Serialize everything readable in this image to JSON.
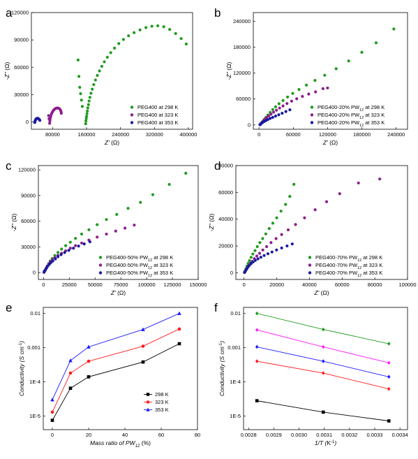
{
  "chart_data": [
    {
      "panel": "a",
      "type": "scatter",
      "xlabel": "Z' (Ω)",
      "ylabel": "-Z'' (Ω)",
      "xlim": [
        30000,
        410000
      ],
      "ylim": [
        -8000,
        120000
      ],
      "xticks": [
        80000,
        160000,
        240000,
        320000,
        400000
      ],
      "yticks": [
        0,
        30000,
        60000,
        90000,
        120000
      ],
      "legend_position": "bottom-right",
      "series": [
        {
          "name": "PEG400 at 298 K",
          "color": "#1f9b1f",
          "marker": "circle",
          "x": [
            158000,
            158500,
            159200,
            160000,
            161000,
            162000,
            163000,
            164500,
            166000,
            168000,
            170500,
            173500,
            177000,
            181000,
            185500,
            190500,
            196000,
            202000,
            209000,
            217000,
            226000,
            236000,
            247000,
            259000,
            272000,
            286000,
            300000,
            314000,
            328000,
            342000,
            356000,
            370000,
            383000,
            395000,
            150000,
            148000,
            146000,
            144000,
            142000,
            140000
          ],
          "y": [
            -2000,
            1000,
            3500,
            6000,
            9000,
            12000,
            15500,
            19000,
            23000,
            27000,
            31500,
            36000,
            41000,
            46000,
            51000,
            56000,
            61000,
            66000,
            71000,
            76000,
            81000,
            86000,
            90500,
            94500,
            98000,
            101000,
            103500,
            105000,
            105500,
            104500,
            101500,
            97000,
            91500,
            85500,
            17000,
            24000,
            31000,
            38000,
            50000,
            68000
          ]
        },
        {
          "name": "PEG400 at 323 K",
          "color": "#8b1f8b",
          "marker": "circle",
          "x": [
            73000,
            73500,
            74000,
            75000,
            76000,
            77500,
            79000,
            81000,
            83000,
            85500,
            88000,
            90500,
            93000,
            95500,
            97500,
            99000,
            100000,
            100500,
            71500,
            70500
          ],
          "y": [
            -1500,
            1000,
            3000,
            5000,
            7000,
            9000,
            10500,
            12000,
            13300,
            14300,
            15000,
            15300,
            15200,
            14700,
            13800,
            12500,
            11000,
            9500,
            3500,
            7000
          ]
        },
        {
          "name": "PEG400 at 353 K",
          "color": "#1a1a9e",
          "marker": "circle",
          "x": [
            38000,
            38500,
            39000,
            40000,
            41000,
            42500,
            44000,
            45500,
            47000,
            48500,
            50000
          ],
          "y": [
            -500,
            500,
            1500,
            2500,
            3300,
            3800,
            4000,
            3900,
            3400,
            2700,
            1800
          ]
        }
      ]
    },
    {
      "panel": "b",
      "type": "scatter",
      "xlabel": "Z' (Ω)",
      "ylabel": "-Z'' (Ω)",
      "xlim": [
        -10000,
        260000
      ],
      "ylim": [
        -10000,
        260000
      ],
      "xticks": [
        0,
        60000,
        120000,
        180000,
        240000
      ],
      "yticks": [
        0,
        60000,
        120000,
        180000,
        240000
      ],
      "legend_position": "bottom-right",
      "series": [
        {
          "name": "PEG400-20% PW12 at 298 K",
          "color": "#1f9b1f",
          "marker": "circle",
          "x": [
            2000,
            4000,
            6500,
            9000,
            12000,
            15500,
            19500,
            24000,
            29000,
            35000,
            42000,
            50000,
            59000,
            70000,
            83000,
            98000,
            115000,
            135000,
            157000,
            180000,
            205000,
            236000
          ],
          "y": [
            1000,
            4000,
            8000,
            12500,
            17500,
            23000,
            29000,
            35500,
            42000,
            49000,
            56500,
            64500,
            73000,
            82000,
            92000,
            103000,
            115000,
            130000,
            148000,
            168000,
            190000,
            222000
          ]
        },
        {
          "name": "PEG400-20% PW12 at 323 K",
          "color": "#8b1f8b",
          "marker": "circle",
          "x": [
            2000,
            3500,
            5500,
            8000,
            10500,
            13500,
            17000,
            21000,
            25500,
            30500,
            36000,
            42000,
            49000,
            57000,
            66000,
            76000,
            87000,
            99000,
            112000,
            120000
          ],
          "y": [
            1000,
            3500,
            6500,
            10000,
            13500,
            17000,
            21000,
            25000,
            29500,
            34000,
            39000,
            44000,
            49500,
            55000,
            60500,
            66000,
            71500,
            76500,
            84000,
            85500
          ]
        },
        {
          "name": "PEG400-20% PW12 at 353 K",
          "color": "#1a1a9e",
          "marker": "circle",
          "x": [
            1500,
            3000,
            4500,
            6500,
            9000,
            12000,
            15500,
            19500,
            24000,
            29000,
            34500,
            40500,
            47000,
            54000
          ],
          "y": [
            500,
            2000,
            4000,
            6000,
            8000,
            10000,
            12500,
            15000,
            17500,
            20500,
            23500,
            27000,
            31000,
            35000
          ]
        }
      ]
    },
    {
      "panel": "c",
      "type": "scatter",
      "xlabel": "Z' (Ω)",
      "ylabel": "-Z'' (Ω)",
      "xlim": [
        -5000,
        150000
      ],
      "ylim": [
        -8000,
        125000
      ],
      "xticks": [
        0,
        25000,
        50000,
        75000,
        100000,
        125000,
        150000
      ],
      "yticks": [
        0,
        30000,
        60000,
        90000,
        120000
      ],
      "legend_position": "bottom-right",
      "series": [
        {
          "name": "PEG400-50% PW12 at 298 K",
          "color": "#1f9b1f",
          "marker": "circle",
          "x": [
            500,
            1500,
            2500,
            3500,
            5000,
            6500,
            8500,
            11000,
            14000,
            17500,
            21500,
            26000,
            31000,
            37000,
            44000,
            52000,
            61000,
            71000,
            82000,
            94000,
            106000,
            122000,
            138000
          ],
          "y": [
            500,
            2500,
            5000,
            7500,
            10500,
            13500,
            16500,
            20000,
            23500,
            27500,
            31500,
            35500,
            40000,
            45000,
            50000,
            56000,
            62000,
            68000,
            75000,
            82000,
            91000,
            103000,
            116000
          ]
        },
        {
          "name": "PEG400-50% PW12 at 323 K",
          "color": "#8b1f8b",
          "marker": "circle",
          "x": [
            500,
            1500,
            2500,
            3500,
            5000,
            6500,
            8500,
            11000,
            14000,
            17500,
            21500,
            26000,
            31000,
            37000,
            44000,
            52000,
            61000,
            70000,
            79000,
            88000
          ],
          "y": [
            500,
            2500,
            5000,
            7500,
            10000,
            12500,
            15000,
            17500,
            20000,
            22500,
            25500,
            28500,
            31500,
            34500,
            38000,
            41500,
            45000,
            48500,
            52000,
            55500
          ]
        },
        {
          "name": "PEG400-50% PW12 at 353 K",
          "color": "#1a1a9e",
          "marker": "circle",
          "x": [
            500,
            1000,
            2000,
            3000,
            4000,
            5500,
            7000,
            9000,
            11500,
            14000,
            17000,
            20500,
            24500,
            29000,
            34000,
            39500,
            45000
          ],
          "y": [
            500,
            2000,
            3500,
            5500,
            7500,
            9500,
            11500,
            13500,
            16000,
            18500,
            21000,
            23500,
            26000,
            28500,
            31000,
            33500,
            36000
          ]
        }
      ]
    },
    {
      "panel": "d",
      "type": "scatter",
      "xlabel": "Z' (Ω)",
      "ylabel": "-Z'' (Ω)",
      "xlim": [
        -5000,
        100000
      ],
      "ylim": [
        -5000,
        80000
      ],
      "xticks": [
        0,
        20000,
        40000,
        60000,
        80000,
        100000
      ],
      "yticks": [
        0,
        20000,
        40000,
        60000,
        80000
      ],
      "legend_position": "bottom-right",
      "series": [
        {
          "name": "PEG400-70% PW12 at 298 K",
          "color": "#1f9b1f",
          "marker": "circle",
          "x": [
            300,
            700,
            1200,
            1800,
            2500,
            3300,
            4300,
            5400,
            6700,
            8100,
            9700,
            11400,
            13300,
            15400,
            17600,
            20000,
            22600,
            25400,
            28000,
            30500
          ],
          "y": [
            300,
            1500,
            3000,
            5000,
            7000,
            9000,
            11500,
            14000,
            16500,
            19500,
            22500,
            25500,
            29000,
            33000,
            37000,
            41000,
            46000,
            51000,
            57000,
            66000
          ]
        },
        {
          "name": "PEG400-70% PW12 at 323 K",
          "color": "#8b1f8b",
          "marker": "circle",
          "x": [
            300,
            800,
            1400,
            2100,
            2900,
            3900,
            5000,
            6300,
            7800,
            9500,
            11500,
            13800,
            16500,
            19600,
            23000,
            27000,
            31500,
            37000,
            43500,
            50500,
            58500,
            70000,
            83000
          ],
          "y": [
            300,
            1200,
            2500,
            4000,
            5500,
            7000,
            8500,
            10500,
            12500,
            14500,
            17000,
            19500,
            22500,
            25500,
            28500,
            32000,
            36000,
            41000,
            47000,
            53000,
            59000,
            67000,
            70000
          ]
        },
        {
          "name": "PEG400-70% PW12 at 353 K",
          "color": "#1a1a9e",
          "marker": "circle",
          "x": [
            300,
            700,
            1200,
            1800,
            2500,
            3300,
            4300,
            5500,
            6900,
            8500,
            10300,
            12300,
            14600,
            17100,
            19900,
            23000,
            26300,
            29500
          ],
          "y": [
            200,
            1000,
            2000,
            3200,
            4400,
            5600,
            6800,
            8000,
            9200,
            10400,
            11600,
            12900,
            14200,
            15500,
            17000,
            18500,
            20000,
            21500
          ]
        }
      ]
    },
    {
      "panel": "e",
      "type": "line",
      "xlabel": "Mass ratio of PW12 (%)",
      "ylabel": "Conductivity (S cm-1)",
      "xlim": [
        -5,
        80
      ],
      "ylim_log": [
        4e-06,
        0.015
      ],
      "yscale": "log",
      "xticks": [
        0,
        20,
        40,
        60,
        80
      ],
      "yticks": [
        1e-05,
        0.0001,
        0.001,
        0.01
      ],
      "ytick_labels": [
        "1E-5",
        "1E-4",
        "0.001",
        "0.01"
      ],
      "legend_position": "bottom-right",
      "x": [
        0,
        10,
        20,
        50,
        70
      ],
      "series": [
        {
          "name": "298 K",
          "color": "#000000",
          "marker": "square",
          "values": [
            7.5e-06,
            6.5e-05,
            0.00014,
            0.00038,
            0.0013
          ]
        },
        {
          "name": "323 K",
          "color": "#ff1a1a",
          "marker": "circle",
          "values": [
            1.3e-05,
            0.00018,
            0.0004,
            0.0011,
            0.0035
          ]
        },
        {
          "name": "353 K",
          "color": "#1a1aff",
          "marker": "triangle",
          "values": [
            3e-05,
            0.00042,
            0.00105,
            0.0034,
            0.01
          ]
        }
      ]
    },
    {
      "panel": "f",
      "type": "line",
      "xlabel": "1/T (K-1)",
      "ylabel": "Conductivity (S cm-1)",
      "xlim": [
        0.00278,
        0.00343
      ],
      "ylim_log": [
        4e-06,
        0.015
      ],
      "yscale": "log",
      "xticks": [
        0.0028,
        0.0029,
        0.003,
        0.0031,
        0.0032,
        0.0033,
        0.0034
      ],
      "xtick_labels": [
        "0.0028",
        "0.0029",
        "0.0030",
        "0.0031",
        "0.0032",
        "0.0033",
        "0.0034"
      ],
      "yticks": [
        1e-05,
        0.0001,
        0.001,
        0.01
      ],
      "ytick_labels": [
        "1E-5",
        "1E-4",
        "0.001",
        "0.01"
      ],
      "x": [
        0.002833,
        0.003096,
        0.003356
      ],
      "series": [
        {
          "color": "#1f9b1f",
          "marker": "diamond",
          "values": [
            0.01,
            0.0034,
            0.0013
          ]
        },
        {
          "color": "#ff1aff",
          "marker": "diamond",
          "values": [
            0.0033,
            0.00105,
            0.00036
          ]
        },
        {
          "color": "#1a1aff",
          "marker": "diamond",
          "values": [
            0.00105,
            0.0004,
            0.00014
          ]
        },
        {
          "color": "#ff1a1a",
          "marker": "diamond",
          "values": [
            0.0004,
            0.00018,
            6.2e-05
          ]
        },
        {
          "color": "#000000",
          "marker": "square",
          "values": [
            2.8e-05,
            1.3e-05,
            7.2e-06
          ]
        }
      ]
    }
  ]
}
